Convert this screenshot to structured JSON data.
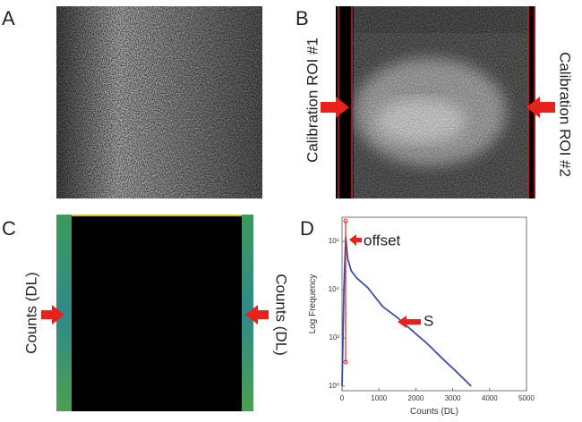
{
  "panels": [
    {
      "label": "A"
    },
    {
      "label": "B",
      "annotations": [
        "Calibration ROI #1",
        "Calibration ROI #2"
      ]
    },
    {
      "label": "C",
      "annotations": [
        "Counts (DL)",
        "Counts (DL)"
      ]
    },
    {
      "label": "D",
      "chart_data": {
        "type": "line",
        "x_label": "Counts (DL)",
        "y_label": "Log Frequency",
        "annotations": [
          "offset",
          "S"
        ],
        "log_y": true,
        "xlim": [
          0,
          5000
        ],
        "xticks": [
          0,
          1000,
          2000,
          3000,
          4000,
          5000
        ],
        "ylim": [
          0.65,
          10000000
        ],
        "yticks": [
          {
            "value": 1,
            "label": "10⁰"
          },
          {
            "value": 100,
            "label": "10²"
          },
          {
            "value": 10000,
            "label": "10⁴"
          },
          {
            "value": 1000000,
            "label": "10⁶"
          }
        ],
        "series": [
          {
            "color": "#3a4fa8",
            "x": [
              0,
              50,
              100,
              150,
              250,
              400,
              700,
              1100,
              1500,
              1900,
              2300,
              2700,
              3100,
              3500
            ],
            "values": [
              1,
              10000,
              1500000,
              200000,
              60000,
              30000,
              12000,
              2000,
              700,
              200,
              60,
              15,
              4,
              1
            ]
          }
        ]
      }
    }
  ]
}
